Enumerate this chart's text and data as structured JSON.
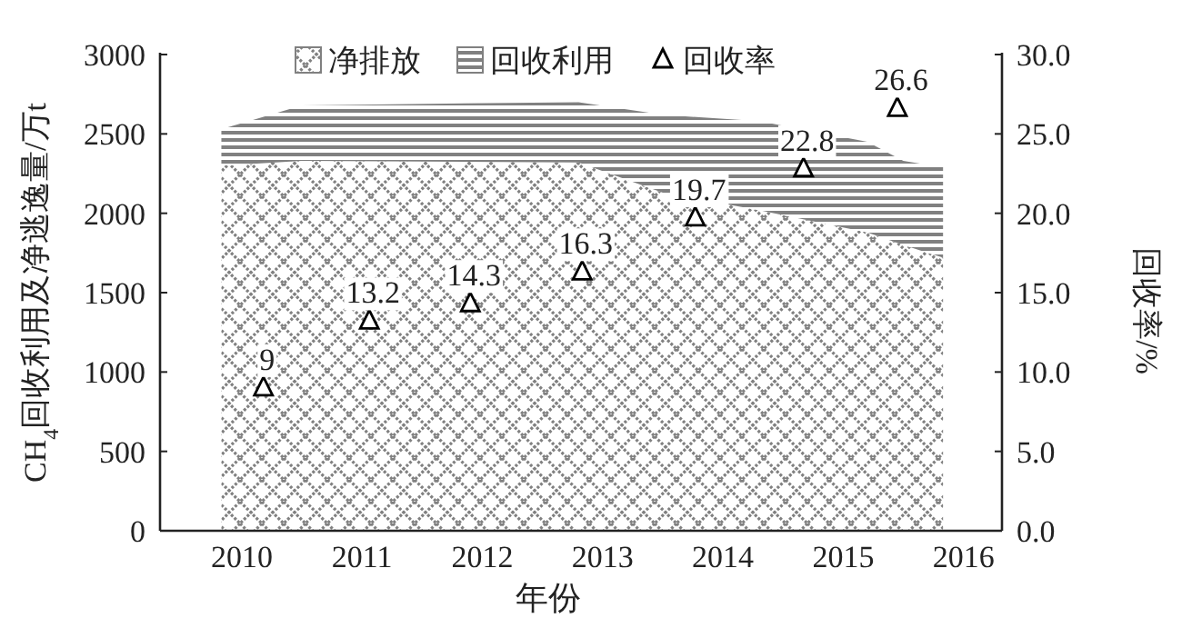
{
  "chart_data": {
    "type": "area",
    "stacked": true,
    "xlabel": "年份",
    "ylabel": "CH$_{4}$回收利用及净逃逸量/万t",
    "y2label": "回收率/%",
    "xlim": [
      2009.32,
      2016.32
    ],
    "xticks": [
      2010,
      2011,
      2012,
      2013,
      2014,
      2015,
      2016
    ],
    "ylim": [
      0,
      3000
    ],
    "yticks": [
      0,
      500,
      1000,
      1500,
      2000,
      2500,
      3000
    ],
    "y2lim": [
      0,
      30
    ],
    "y2ticks": [
      {
        "value": 0,
        "label": "0.0"
      },
      {
        "value": 5,
        "label": "5.0"
      },
      {
        "value": 10,
        "label": "10.0"
      },
      {
        "value": 15,
        "label": "15.0"
      },
      {
        "value": 20,
        "label": "20.0"
      },
      {
        "value": 25,
        "label": "25.0"
      },
      {
        "value": 30,
        "label": "30.0"
      }
    ],
    "legend": "top",
    "grid": false,
    "series": [
      {
        "name": "净排放",
        "color": "#808080",
        "x": [
          2009.83,
          2010.06,
          2010.5,
          2012.8,
          2013.5,
          2014.3,
          2015.2,
          2015.5,
          2015.83
        ],
        "values": [
          2300,
          2310,
          2330,
          2320,
          2130,
          2020,
          1880,
          1800,
          1720
        ]
      },
      {
        "name": "回收利用",
        "color": "#808080",
        "x": [
          2009.83,
          2010.06,
          2010.5,
          2012.8,
          2013.5,
          2014.3,
          2015.2,
          2015.5,
          2015.83
        ],
        "values": [
          230,
          270,
          350,
          380,
          490,
          560,
          570,
          530,
          570
        ]
      },
      {
        "name": "回收率",
        "type": "scatter",
        "axis": "y2",
        "marker": "triangle",
        "color": "#000000",
        "data_labels": true,
        "x": [
          2010.18,
          2011.06,
          2011.9,
          2012.83,
          2013.77,
          2014.67,
          2015.45
        ],
        "values": [
          9,
          13.2,
          14.3,
          16.3,
          19.7,
          22.8,
          26.6
        ]
      }
    ]
  }
}
